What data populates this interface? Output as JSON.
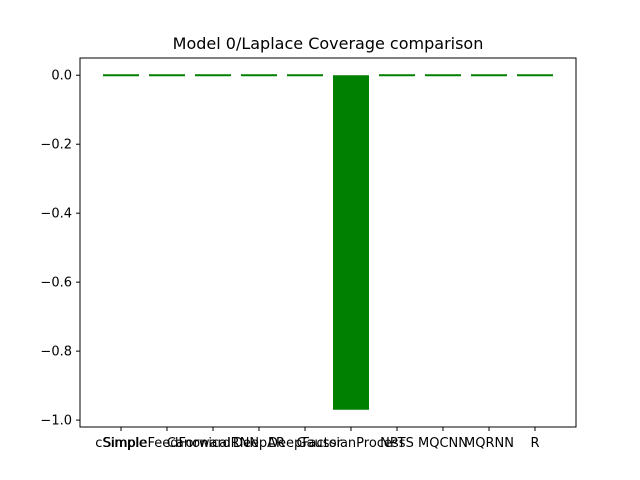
{
  "chart_data": {
    "type": "bar",
    "title": "Model 0/Laplace Coverage comparison",
    "xlabel": "",
    "ylabel": "",
    "categories": [
      "cSimple",
      "SimpleFeedForward",
      "CanonicalRNN",
      "DeepAR",
      "DeepFactor",
      "GaussianProcess",
      "NPTS",
      "MQCNN",
      "MQRNN",
      "R"
    ],
    "values": [
      0.0,
      0.0,
      0.0,
      0.0,
      0.0,
      -0.97,
      0.0,
      0.0,
      0.0,
      0.0
    ],
    "ylim": [
      -1.02,
      0.05
    ],
    "yticks": [
      0.0,
      -0.2,
      -0.4,
      -0.6,
      -0.8,
      -1.0
    ],
    "ytick_labels": [
      "0.0",
      "−0.2",
      "−0.4",
      "−0.6",
      "−0.8",
      "−1.0"
    ],
    "bar_color": "#008000",
    "grid": false,
    "legend": "none"
  }
}
